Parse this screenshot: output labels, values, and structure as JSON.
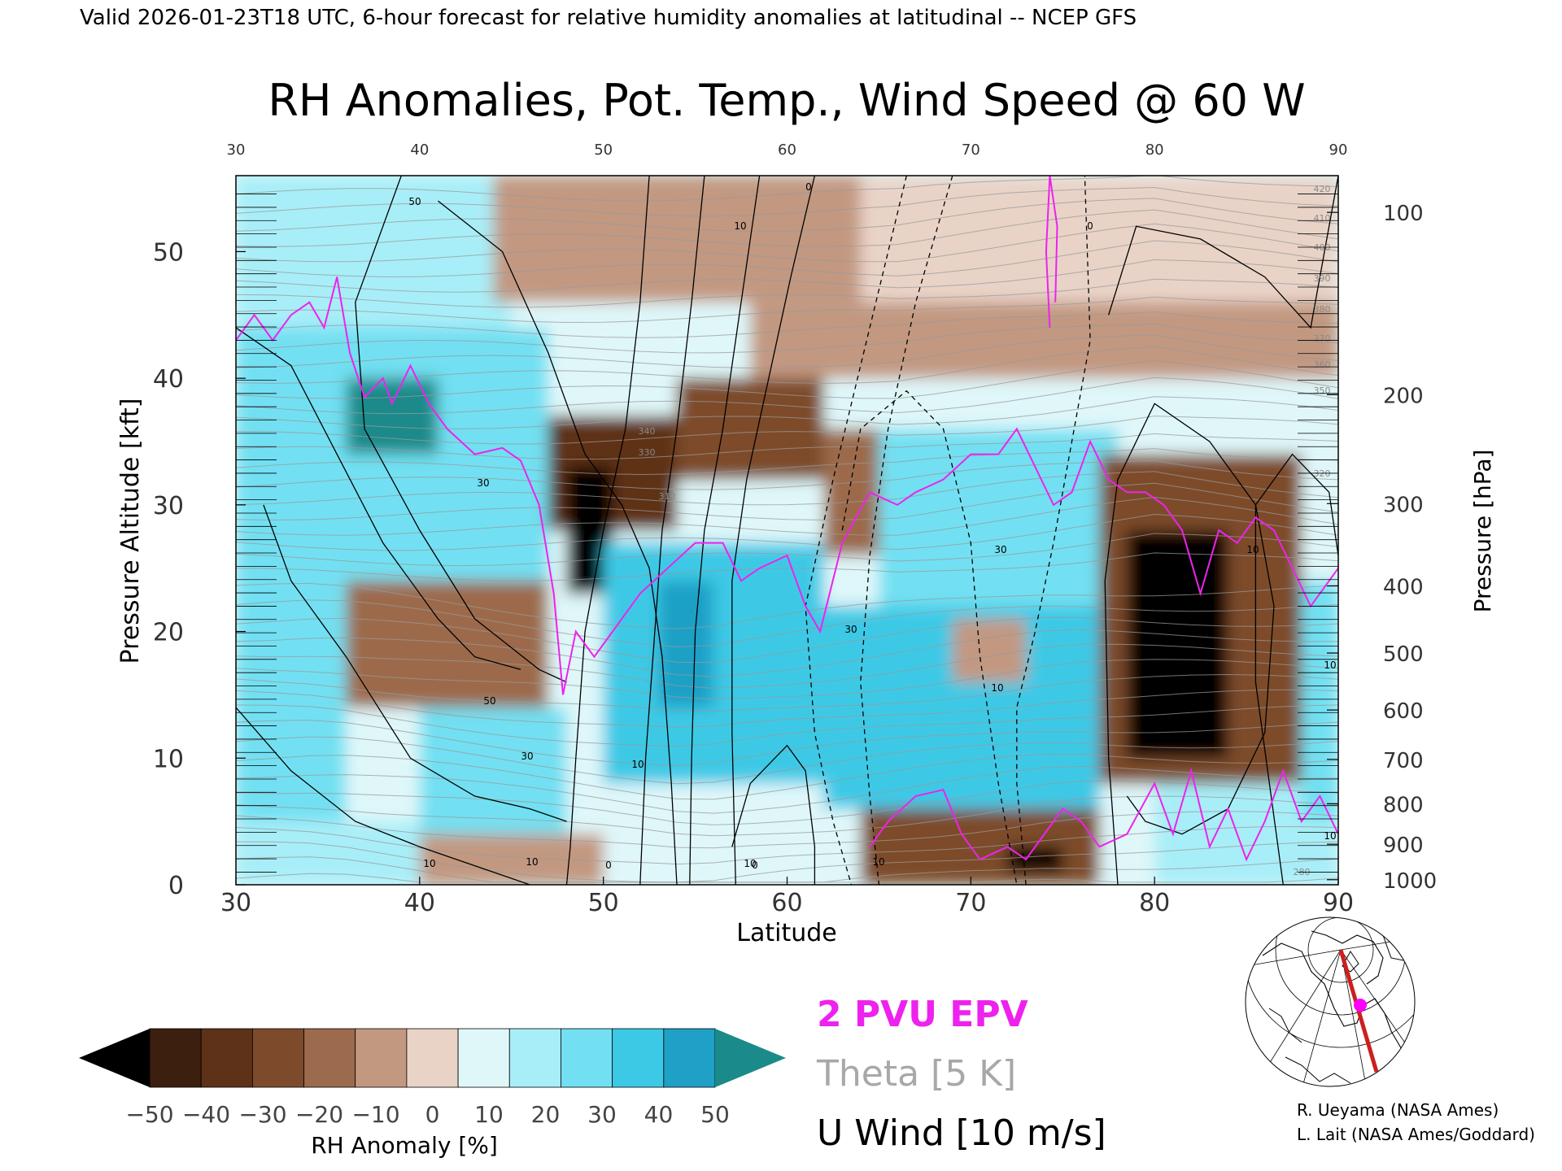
{
  "header_text": "Valid 2026-01-23T18 UTC, 6-hour forecast for relative humidity anomalies at latitudinal -- NCEP GFS",
  "chart_data": {
    "type": "heatmap",
    "title": "RH Anomalies, Pot. Temp., Wind Speed @ 60 W",
    "xlabel": "Latitude",
    "ylabel": "Pressure Altitude [kft]",
    "y2label": "Pressure [hPa]",
    "xlim": [
      30,
      90
    ],
    "ylim": [
      0,
      56
    ],
    "x_ticks": [
      "30",
      "40",
      "50",
      "60",
      "70",
      "80",
      "90"
    ],
    "y_ticks": [
      {
        "value": 0,
        "label": "0"
      },
      {
        "value": 10,
        "label": "10"
      },
      {
        "value": 20,
        "label": "20"
      },
      {
        "value": 30,
        "label": "30"
      },
      {
        "value": 40,
        "label": "40"
      },
      {
        "value": 50,
        "label": "50"
      }
    ],
    "pressure_ticks": [
      {
        "hpa": 100,
        "kft": 53.1,
        "label": "100"
      },
      {
        "hpa": 200,
        "kft": 38.7,
        "label": "200"
      },
      {
        "hpa": 300,
        "kft": 30.1,
        "label": "300"
      },
      {
        "hpa": 400,
        "kft": 23.6,
        "label": "400"
      },
      {
        "hpa": 500,
        "kft": 18.3,
        "label": "500"
      },
      {
        "hpa": 600,
        "kft": 13.8,
        "label": "600"
      },
      {
        "hpa": 700,
        "kft": 9.9,
        "label": "700"
      },
      {
        "hpa": 800,
        "kft": 6.4,
        "label": "800"
      },
      {
        "hpa": 900,
        "kft": 3.2,
        "label": "900"
      },
      {
        "hpa": 1000,
        "kft": 0.4,
        "label": "1000"
      }
    ],
    "grid": false,
    "legend": {
      "epv_label": "2 PVU EPV",
      "theta_label": "Theta [5 K]",
      "wind_label": "U Wind [10 m/s]"
    },
    "colorbar": {
      "label": "RH Anomaly [%]",
      "ticks": [
        "−50",
        "−40",
        "−30",
        "−20",
        "−10",
        "0",
        "10",
        "20",
        "30",
        "40",
        "50"
      ],
      "colors": [
        "#3c1f0e",
        "#5e3218",
        "#7d4b2c",
        "#9c6a4c",
        "#c29881",
        "#e9d3c7",
        "#dff7f9",
        "#a8eef8",
        "#72e0f2",
        "#3cc9e6",
        "#1fa0c6"
      ],
      "under_color": "#000000",
      "over_color": "#1b8a8a"
    },
    "rh_anomaly_cells": [
      {
        "lat": [
          30,
          90
        ],
        "kft": [
          0,
          56
        ],
        "value": 5
      },
      {
        "lat": [
          30,
          45
        ],
        "kft": [
          44,
          56
        ],
        "value": 15
      },
      {
        "lat": [
          44,
          64
        ],
        "kft": [
          46,
          56
        ],
        "value": -12
      },
      {
        "lat": [
          64,
          90
        ],
        "kft": [
          46,
          56
        ],
        "value": 3
      },
      {
        "lat": [
          58,
          90
        ],
        "kft": [
          40,
          46
        ],
        "value": -15
      },
      {
        "lat": [
          30,
          47
        ],
        "kft": [
          24,
          44
        ],
        "value": 32
      },
      {
        "lat": [
          36,
          41
        ],
        "kft": [
          34,
          40
        ],
        "value": 52
      },
      {
        "lat": [
          47,
          54
        ],
        "kft": [
          28,
          37
        ],
        "value": -38
      },
      {
        "lat": [
          54,
          62
        ],
        "kft": [
          32,
          40
        ],
        "value": -30
      },
      {
        "lat": [
          48,
          50.5
        ],
        "kft": [
          23,
          33
        ],
        "value": -55
      },
      {
        "lat": [
          62,
          65
        ],
        "kft": [
          26,
          36
        ],
        "value": -20
      },
      {
        "lat": [
          65,
          78
        ],
        "kft": [
          22,
          36
        ],
        "value": 32
      },
      {
        "lat": [
          50,
          62
        ],
        "kft": [
          8,
          27
        ],
        "value": 38
      },
      {
        "lat": [
          53,
          56
        ],
        "kft": [
          14,
          24
        ],
        "value": 45
      },
      {
        "lat": [
          30,
          36
        ],
        "kft": [
          5,
          24
        ],
        "value": 28
      },
      {
        "lat": [
          36,
          47
        ],
        "kft": [
          14,
          24
        ],
        "value": -22
      },
      {
        "lat": [
          40,
          48
        ],
        "kft": [
          3,
          14
        ],
        "value": 30
      },
      {
        "lat": [
          30,
          40
        ],
        "kft": [
          0,
          5
        ],
        "value": 18
      },
      {
        "lat": [
          40,
          50
        ],
        "kft": [
          0,
          4
        ],
        "value": -12
      },
      {
        "lat": [
          62,
          77
        ],
        "kft": [
          6,
          22
        ],
        "value": 40
      },
      {
        "lat": [
          69,
          73
        ],
        "kft": [
          16,
          21
        ],
        "value": -15
      },
      {
        "lat": [
          64,
          77
        ],
        "kft": [
          0,
          6
        ],
        "value": -28
      },
      {
        "lat": [
          72,
          75
        ],
        "kft": [
          1,
          3
        ],
        "value": -55
      },
      {
        "lat": [
          77,
          88
        ],
        "kft": [
          8,
          34
        ],
        "value": -35
      },
      {
        "lat": [
          78.5,
          84
        ],
        "kft": [
          10,
          28
        ],
        "value": -55
      },
      {
        "lat": [
          80,
          90
        ],
        "kft": [
          0,
          8
        ],
        "value": 18
      },
      {
        "lat": [
          88,
          90
        ],
        "kft": [
          5,
          24
        ],
        "value": 30
      }
    ],
    "theta_labels": [
      "420",
      "410",
      "400",
      "390",
      "380",
      "370",
      "360",
      "350",
      "340",
      "330",
      "320",
      "310",
      "280"
    ],
    "wind_labels": [
      "50",
      "30",
      "10",
      "0",
      "10",
      "30",
      "50",
      "10",
      "0",
      "10",
      "30",
      "10",
      "10",
      "0",
      "30",
      "10",
      "10",
      "10",
      "10",
      "0"
    ],
    "wind_isotachs": [
      {
        "style": "solid",
        "points": [
          [
            39,
            56
          ],
          [
            36.5,
            46
          ],
          [
            37,
            36
          ],
          [
            40,
            28
          ],
          [
            43,
            21
          ],
          [
            46.5,
            17
          ],
          [
            48,
            16
          ]
        ]
      },
      {
        "style": "solid",
        "points": [
          [
            41,
            54
          ],
          [
            44.5,
            50
          ],
          [
            47,
            42
          ],
          [
            49,
            34
          ],
          [
            51,
            30
          ],
          [
            52.5,
            25
          ],
          [
            53.2,
            18
          ],
          [
            53.7,
            8
          ],
          [
            54,
            0
          ]
        ]
      },
      {
        "style": "solid",
        "points": [
          [
            52.5,
            56
          ],
          [
            52,
            46
          ],
          [
            51.2,
            36
          ],
          [
            50,
            28
          ],
          [
            49,
            20
          ],
          [
            48.5,
            10
          ],
          [
            48.2,
            3
          ],
          [
            48,
            0
          ]
        ]
      },
      {
        "style": "solid",
        "points": [
          [
            55.5,
            56
          ],
          [
            54.8,
            46
          ],
          [
            54,
            36
          ],
          [
            53.2,
            28
          ],
          [
            52.8,
            20
          ],
          [
            52.3,
            10
          ],
          [
            52,
            0
          ]
        ]
      },
      {
        "style": "solid",
        "points": [
          [
            58.5,
            56
          ],
          [
            57.5,
            46
          ],
          [
            56.5,
            36
          ],
          [
            55.5,
            28
          ],
          [
            55,
            20
          ],
          [
            54.8,
            10
          ],
          [
            54.7,
            0
          ]
        ]
      },
      {
        "style": "solid",
        "points": [
          [
            61.5,
            56
          ],
          [
            60.2,
            48
          ],
          [
            59,
            40
          ],
          [
            57.8,
            32
          ],
          [
            57,
            24
          ],
          [
            57,
            12
          ],
          [
            57.2,
            0
          ]
        ]
      },
      {
        "style": "solid",
        "points": [
          [
            30,
            44
          ],
          [
            33,
            41
          ],
          [
            35.5,
            34
          ],
          [
            38,
            27
          ],
          [
            41,
            21
          ],
          [
            43,
            18
          ],
          [
            45.5,
            17
          ]
        ]
      },
      {
        "style": "solid",
        "points": [
          [
            30,
            14
          ],
          [
            33,
            9
          ],
          [
            36.5,
            5
          ],
          [
            40,
            3
          ],
          [
            43,
            1.5
          ],
          [
            46,
            0
          ]
        ]
      },
      {
        "style": "solid",
        "points": [
          [
            31.5,
            30
          ],
          [
            33,
            24
          ],
          [
            36,
            18
          ],
          [
            39.5,
            10
          ],
          [
            43,
            7
          ],
          [
            46,
            6
          ],
          [
            48,
            5
          ]
        ]
      },
      {
        "style": "solid",
        "points": [
          [
            77.5,
            45
          ],
          [
            79,
            52
          ],
          [
            82.5,
            51
          ],
          [
            86,
            48
          ],
          [
            88.5,
            44
          ],
          [
            89.5,
            52
          ],
          [
            90,
            56
          ]
        ]
      },
      {
        "style": "solid",
        "points": [
          [
            78,
            0
          ],
          [
            77.5,
            10
          ],
          [
            77.3,
            24
          ],
          [
            78,
            32
          ],
          [
            80,
            38
          ],
          [
            83,
            35
          ],
          [
            85.5,
            30
          ],
          [
            86.5,
            22
          ],
          [
            86,
            12
          ],
          [
            84,
            6
          ],
          [
            81.5,
            4
          ],
          [
            79.5,
            5
          ],
          [
            78.5,
            7
          ]
        ]
      },
      {
        "style": "solid",
        "points": [
          [
            87,
            0
          ],
          [
            85.5,
            16
          ],
          [
            85.5,
            30
          ],
          [
            87.5,
            34
          ],
          [
            89.5,
            31
          ],
          [
            90,
            26
          ]
        ]
      },
      {
        "style": "solid",
        "points": [
          [
            57,
            3
          ],
          [
            58,
            8
          ],
          [
            60,
            11
          ],
          [
            61,
            9
          ],
          [
            61.5,
            3
          ],
          [
            61.5,
            0
          ]
        ]
      },
      {
        "style": "dashed",
        "points": [
          [
            66.5,
            56
          ],
          [
            64.5,
            44
          ],
          [
            62.5,
            32
          ],
          [
            61,
            22
          ],
          [
            61.5,
            12
          ],
          [
            62.5,
            5
          ],
          [
            63.5,
            0
          ]
        ]
      },
      {
        "style": "dashed",
        "points": [
          [
            69,
            56
          ],
          [
            67,
            46
          ],
          [
            65.5,
            36
          ],
          [
            64.5,
            26
          ],
          [
            64,
            16
          ],
          [
            64.5,
            7
          ],
          [
            65,
            0
          ]
        ]
      },
      {
        "style": "dashed",
        "points": [
          [
            63,
            28
          ],
          [
            64,
            36
          ],
          [
            66.5,
            39
          ],
          [
            68.5,
            36
          ],
          [
            70,
            27
          ],
          [
            70.5,
            18
          ],
          [
            71.5,
            8
          ],
          [
            72.5,
            0
          ]
        ]
      },
      {
        "style": "dashed",
        "points": [
          [
            73,
            0
          ],
          [
            72.5,
            8
          ],
          [
            72.5,
            14
          ],
          [
            73.5,
            20
          ],
          [
            74.5,
            27
          ],
          [
            75.5,
            35
          ],
          [
            76.5,
            43
          ],
          [
            76.2,
            56
          ]
        ]
      }
    ],
    "epv_2pvu": [
      [
        30,
        43
      ],
      [
        31,
        45
      ],
      [
        32,
        43
      ],
      [
        33,
        45
      ],
      [
        34,
        46
      ],
      [
        34.8,
        44
      ],
      [
        35.5,
        48
      ],
      [
        36.2,
        42
      ],
      [
        37,
        38.5
      ],
      [
        38,
        40
      ],
      [
        38.5,
        38
      ],
      [
        39.5,
        41
      ],
      [
        40.5,
        38
      ],
      [
        41.5,
        36
      ],
      [
        43,
        34
      ],
      [
        44.5,
        34.5
      ],
      [
        45.5,
        33.5
      ],
      [
        46.5,
        30
      ],
      [
        47.3,
        23
      ],
      [
        47.8,
        15
      ],
      [
        48.5,
        20
      ],
      [
        49.5,
        18
      ],
      [
        50.5,
        20
      ],
      [
        52,
        23
      ],
      [
        53.5,
        25
      ],
      [
        55,
        27
      ],
      [
        56.5,
        27
      ],
      [
        57.5,
        24
      ],
      [
        58.5,
        25
      ],
      [
        60,
        26
      ],
      [
        61,
        22
      ],
      [
        61.8,
        20
      ],
      [
        63,
        27
      ],
      [
        64.5,
        31
      ],
      [
        66,
        30
      ],
      [
        67,
        31
      ],
      [
        68.5,
        32
      ],
      [
        70,
        34
      ],
      [
        71.5,
        34
      ],
      [
        72.5,
        36
      ],
      [
        73.5,
        33
      ],
      [
        74.5,
        30
      ],
      [
        75.5,
        31
      ],
      [
        76.5,
        35
      ],
      [
        77.5,
        32
      ],
      [
        78.5,
        31
      ],
      [
        79.5,
        31
      ],
      [
        80.5,
        30
      ],
      [
        81.5,
        28
      ],
      [
        82.5,
        23
      ],
      [
        83.5,
        28
      ],
      [
        84.5,
        27
      ],
      [
        85.5,
        29
      ],
      [
        86.5,
        28
      ],
      [
        87.5,
        25
      ],
      [
        88.5,
        22
      ],
      [
        90,
        25
      ]
    ],
    "epv_2pvu_lower": [
      [
        64.5,
        3
      ],
      [
        65.5,
        5
      ],
      [
        67,
        7
      ],
      [
        68.5,
        7.5
      ],
      [
        69.5,
        4
      ],
      [
        70.5,
        2
      ],
      [
        72,
        3
      ],
      [
        73,
        2
      ],
      [
        74,
        4
      ],
      [
        75,
        6
      ],
      [
        76,
        5
      ],
      [
        77,
        3
      ],
      [
        78.5,
        4
      ],
      [
        80,
        8
      ],
      [
        81,
        4
      ],
      [
        82,
        9
      ],
      [
        83,
        3
      ],
      [
        84,
        6
      ],
      [
        85,
        2
      ],
      [
        86,
        5
      ],
      [
        87,
        9
      ],
      [
        88,
        5
      ],
      [
        89,
        7
      ],
      [
        90,
        4
      ]
    ],
    "epv_2pvu_spike": [
      [
        74.3,
        44
      ],
      [
        74.1,
        50
      ],
      [
        74.3,
        56
      ],
      [
        74.7,
        52
      ],
      [
        74.6,
        46
      ]
    ],
    "inset_map": {
      "marker_color": "#ff00ff",
      "line_color": "#cc1f1f"
    }
  },
  "credits": [
    "R. Ueyama (NASA Ames)",
    "L. Lait (NASA Ames/Goddard)"
  ]
}
